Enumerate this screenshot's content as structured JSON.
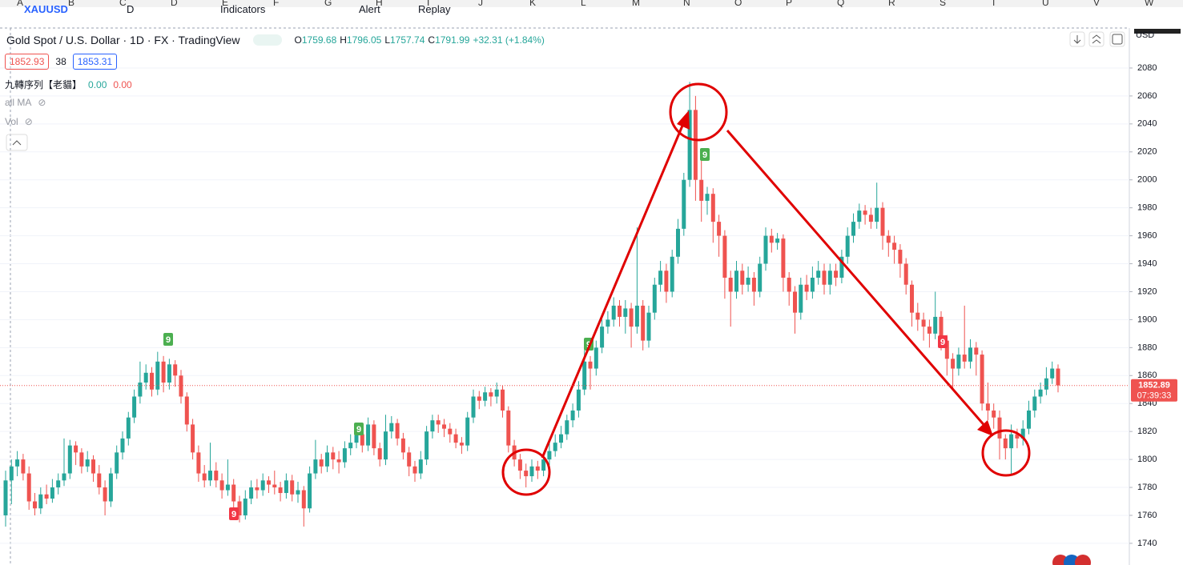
{
  "toolbar": {
    "symbol": "XAUUSD",
    "interval": "D",
    "items": [
      "Indicators",
      "Alert",
      "Replay"
    ]
  },
  "spreadsheet_columns": [
    "A",
    "B",
    "C",
    "D",
    "E",
    "F",
    "G",
    "H",
    "I",
    "J",
    "K",
    "L",
    "M",
    "N",
    "O",
    "P",
    "Q",
    "R",
    "S",
    "T",
    "U",
    "V",
    "W"
  ],
  "chart_data": {
    "type": "candlestick",
    "title": "Gold Spot / U.S. Dollar · 1D · FX · TradingView",
    "ohlc_legend": [
      {
        "key": "O",
        "value": "1759.68"
      },
      {
        "key": "H",
        "value": "1796.05"
      },
      {
        "key": "L",
        "value": "1757.74"
      },
      {
        "key": "C",
        "value": "1791.99"
      }
    ],
    "change": "+32.31 (+1.84%)",
    "bid": 1852.93,
    "spread": 38,
    "ask": 1853.31,
    "indicators": [
      {
        "name": "九轉序列【老貓】",
        "values": [
          "0.00",
          "0.00"
        ]
      },
      {
        "name": "all MA"
      },
      {
        "name": "Vol"
      }
    ],
    "currency": "USD",
    "last_price": 1852.89,
    "countdown": "07:39:33",
    "up_color": "#26a69a",
    "down_color": "#ef5350",
    "grid": true,
    "ylim": [
      1724.5,
      2108.6
    ],
    "yticks": [
      1740,
      1760,
      1780,
      1800,
      1820,
      1840,
      1860,
      1880,
      1900,
      1920,
      1940,
      1960,
      1980,
      2000,
      2020,
      2040,
      2060,
      2080
    ],
    "td_markers": [
      {
        "label": "9",
        "color": "#4caf50"
      },
      {
        "label": "9",
        "color": "#4caf50"
      },
      {
        "label": "9",
        "color": "#4caf50"
      },
      {
        "label": "9",
        "color": "#4caf50"
      },
      {
        "label": "9",
        "color": "#f23645"
      },
      {
        "label": "9",
        "color": "#f23645"
      }
    ],
    "ohlc": [
      [
        1760,
        1792,
        1752,
        1785
      ],
      [
        1785,
        1800,
        1768,
        1795
      ],
      [
        1795,
        1806,
        1788,
        1800
      ],
      [
        1800,
        1804,
        1785,
        1790
      ],
      [
        1790,
        1795,
        1764,
        1770
      ],
      [
        1770,
        1776,
        1760,
        1765
      ],
      [
        1765,
        1780,
        1761,
        1775
      ],
      [
        1775,
        1782,
        1768,
        1772
      ],
      [
        1772,
        1786,
        1769,
        1780
      ],
      [
        1780,
        1790,
        1775,
        1785
      ],
      [
        1785,
        1815,
        1781,
        1790
      ],
      [
        1790,
        1814,
        1786,
        1810
      ],
      [
        1810,
        1813,
        1796,
        1805
      ],
      [
        1805,
        1808,
        1790,
        1795
      ],
      [
        1795,
        1806,
        1791,
        1800
      ],
      [
        1800,
        1803,
        1784,
        1790
      ],
      [
        1790,
        1796,
        1775,
        1780
      ],
      [
        1780,
        1785,
        1760,
        1770
      ],
      [
        1770,
        1794,
        1766,
        1790
      ],
      [
        1790,
        1810,
        1786,
        1805
      ],
      [
        1805,
        1820,
        1800,
        1815
      ],
      [
        1815,
        1834,
        1810,
        1830
      ],
      [
        1830,
        1850,
        1826,
        1845
      ],
      [
        1845,
        1870,
        1840,
        1855
      ],
      [
        1855,
        1868,
        1850,
        1862
      ],
      [
        1862,
        1866,
        1845,
        1850
      ],
      [
        1850,
        1877,
        1846,
        1870
      ],
      [
        1870,
        1874,
        1848,
        1855
      ],
      [
        1855,
        1872,
        1850,
        1868
      ],
      [
        1868,
        1871,
        1852,
        1860
      ],
      [
        1860,
        1864,
        1840,
        1845
      ],
      [
        1845,
        1848,
        1820,
        1825
      ],
      [
        1825,
        1829,
        1800,
        1805
      ],
      [
        1805,
        1810,
        1784,
        1790
      ],
      [
        1790,
        1796,
        1780,
        1785
      ],
      [
        1785,
        1812,
        1781,
        1792
      ],
      [
        1792,
        1798,
        1780,
        1785
      ],
      [
        1785,
        1790,
        1772,
        1778
      ],
      [
        1778,
        1800,
        1774,
        1782
      ],
      [
        1782,
        1786,
        1765,
        1770
      ],
      [
        1770,
        1774,
        1755,
        1760
      ],
      [
        1760,
        1778,
        1757,
        1772
      ],
      [
        1772,
        1785,
        1768,
        1780
      ],
      [
        1780,
        1786,
        1772,
        1778
      ],
      [
        1778,
        1790,
        1774,
        1785
      ],
      [
        1785,
        1788,
        1776,
        1782
      ],
      [
        1782,
        1792,
        1775,
        1780
      ],
      [
        1780,
        1784,
        1770,
        1776
      ],
      [
        1776,
        1790,
        1772,
        1785
      ],
      [
        1785,
        1789,
        1770,
        1775
      ],
      [
        1775,
        1784,
        1769,
        1778
      ],
      [
        1778,
        1781,
        1752,
        1765
      ],
      [
        1765,
        1795,
        1762,
        1790
      ],
      [
        1790,
        1814,
        1786,
        1800
      ],
      [
        1800,
        1804,
        1790,
        1795
      ],
      [
        1795,
        1810,
        1791,
        1805
      ],
      [
        1805,
        1809,
        1793,
        1800
      ],
      [
        1800,
        1806,
        1790,
        1798
      ],
      [
        1798,
        1813,
        1794,
        1808
      ],
      [
        1808,
        1818,
        1803,
        1812
      ],
      [
        1812,
        1824,
        1808,
        1818
      ],
      [
        1818,
        1822,
        1805,
        1810
      ],
      [
        1810,
        1830,
        1806,
        1825
      ],
      [
        1825,
        1828,
        1803,
        1808
      ],
      [
        1808,
        1812,
        1795,
        1800
      ],
      [
        1800,
        1832,
        1796,
        1820
      ],
      [
        1820,
        1831,
        1815,
        1826
      ],
      [
        1826,
        1829,
        1810,
        1815
      ],
      [
        1815,
        1819,
        1800,
        1805
      ],
      [
        1805,
        1809,
        1788,
        1795
      ],
      [
        1795,
        1799,
        1784,
        1790
      ],
      [
        1790,
        1806,
        1786,
        1800
      ],
      [
        1800,
        1824,
        1796,
        1820
      ],
      [
        1820,
        1832,
        1815,
        1828
      ],
      [
        1828,
        1832,
        1819,
        1825
      ],
      [
        1825,
        1829,
        1816,
        1822
      ],
      [
        1822,
        1826,
        1812,
        1818
      ],
      [
        1818,
        1822,
        1808,
        1812
      ],
      [
        1812,
        1816,
        1804,
        1810
      ],
      [
        1810,
        1834,
        1806,
        1830
      ],
      [
        1830,
        1850,
        1826,
        1845
      ],
      [
        1845,
        1849,
        1836,
        1842
      ],
      [
        1842,
        1852,
        1838,
        1848
      ],
      [
        1848,
        1851,
        1838,
        1845
      ],
      [
        1845,
        1855,
        1840,
        1850
      ],
      [
        1850,
        1853,
        1830,
        1835
      ],
      [
        1835,
        1838,
        1805,
        1810
      ],
      [
        1810,
        1814,
        1795,
        1800
      ],
      [
        1800,
        1804,
        1786,
        1792
      ],
      [
        1792,
        1797,
        1780,
        1788
      ],
      [
        1788,
        1800,
        1784,
        1795
      ],
      [
        1795,
        1799,
        1786,
        1792
      ],
      [
        1792,
        1805,
        1788,
        1800
      ],
      [
        1800,
        1812,
        1796,
        1806
      ],
      [
        1806,
        1818,
        1802,
        1812
      ],
      [
        1812,
        1824,
        1808,
        1818
      ],
      [
        1818,
        1832,
        1814,
        1828
      ],
      [
        1828,
        1840,
        1823,
        1835
      ],
      [
        1835,
        1856,
        1830,
        1850
      ],
      [
        1850,
        1878,
        1846,
        1870
      ],
      [
        1870,
        1874,
        1850,
        1865
      ],
      [
        1865,
        1885,
        1860,
        1880
      ],
      [
        1880,
        1900,
        1876,
        1895
      ],
      [
        1895,
        1906,
        1890,
        1900
      ],
      [
        1900,
        1916,
        1895,
        1910
      ],
      [
        1910,
        1914,
        1895,
        1902
      ],
      [
        1902,
        1914,
        1890,
        1908
      ],
      [
        1908,
        1912,
        1880,
        1895
      ],
      [
        1895,
        1966,
        1890,
        1910
      ],
      [
        1910,
        1914,
        1878,
        1885
      ],
      [
        1885,
        1910,
        1880,
        1905
      ],
      [
        1905,
        1930,
        1900,
        1925
      ],
      [
        1925,
        1942,
        1920,
        1935
      ],
      [
        1935,
        1940,
        1912,
        1920
      ],
      [
        1920,
        1950,
        1916,
        1945
      ],
      [
        1945,
        1972,
        1940,
        1965
      ],
      [
        1965,
        2005,
        1960,
        2000
      ],
      [
        2000,
        2070,
        1995,
        2050
      ],
      [
        2050,
        2060,
        1985,
        2000
      ],
      [
        2000,
        2015,
        1970,
        1985
      ],
      [
        1985,
        1995,
        1975,
        1990
      ],
      [
        1990,
        1994,
        1955,
        1970
      ],
      [
        1970,
        1975,
        1945,
        1960
      ],
      [
        1960,
        1964,
        1915,
        1930
      ],
      [
        1930,
        1935,
        1895,
        1920
      ],
      [
        1920,
        1942,
        1915,
        1935
      ],
      [
        1935,
        1940,
        1918,
        1925
      ],
      [
        1925,
        1938,
        1920,
        1930
      ],
      [
        1930,
        1934,
        1910,
        1920
      ],
      [
        1920,
        1945,
        1916,
        1940
      ],
      [
        1940,
        1966,
        1935,
        1960
      ],
      [
        1960,
        1965,
        1948,
        1955
      ],
      [
        1955,
        1962,
        1950,
        1958
      ],
      [
        1958,
        1961,
        1920,
        1930
      ],
      [
        1930,
        1934,
        1910,
        1920
      ],
      [
        1920,
        1924,
        1890,
        1905
      ],
      [
        1905,
        1930,
        1900,
        1925
      ],
      [
        1925,
        1932,
        1914,
        1920
      ],
      [
        1920,
        1938,
        1915,
        1930
      ],
      [
        1930,
        1942,
        1925,
        1935
      ],
      [
        1935,
        1940,
        1918,
        1925
      ],
      [
        1925,
        1940,
        1918,
        1935
      ],
      [
        1935,
        1940,
        1924,
        1930
      ],
      [
        1930,
        1950,
        1926,
        1945
      ],
      [
        1945,
        1966,
        1940,
        1960
      ],
      [
        1960,
        1976,
        1955,
        1970
      ],
      [
        1970,
        1983,
        1965,
        1978
      ],
      [
        1978,
        1982,
        1968,
        1975
      ],
      [
        1975,
        1980,
        1965,
        1970
      ],
      [
        1970,
        1998,
        1965,
        1980
      ],
      [
        1980,
        1984,
        1950,
        1960
      ],
      [
        1960,
        1964,
        1945,
        1955
      ],
      [
        1955,
        1960,
        1940,
        1950
      ],
      [
        1950,
        1954,
        1930,
        1940
      ],
      [
        1940,
        1944,
        1918,
        1925
      ],
      [
        1925,
        1928,
        1895,
        1905
      ],
      [
        1905,
        1912,
        1892,
        1900
      ],
      [
        1900,
        1905,
        1885,
        1895
      ],
      [
        1895,
        1900,
        1880,
        1890
      ],
      [
        1890,
        1920,
        1886,
        1902
      ],
      [
        1902,
        1906,
        1878,
        1885
      ],
      [
        1885,
        1889,
        1860,
        1872
      ],
      [
        1872,
        1876,
        1850,
        1865
      ],
      [
        1865,
        1880,
        1860,
        1875
      ],
      [
        1875,
        1910,
        1865,
        1870
      ],
      [
        1870,
        1886,
        1865,
        1880
      ],
      [
        1880,
        1884,
        1860,
        1875
      ],
      [
        1875,
        1878,
        1835,
        1840
      ],
      [
        1840,
        1855,
        1828,
        1835
      ],
      [
        1835,
        1840,
        1822,
        1830
      ],
      [
        1830,
        1835,
        1800,
        1815
      ],
      [
        1815,
        1818,
        1800,
        1808
      ],
      [
        1808,
        1825,
        1789,
        1818
      ],
      [
        1818,
        1822,
        1808,
        1815
      ],
      [
        1815,
        1828,
        1810,
        1822
      ],
      [
        1822,
        1842,
        1818,
        1835
      ],
      [
        1835,
        1850,
        1830,
        1845
      ],
      [
        1845,
        1855,
        1840,
        1850
      ],
      [
        1850,
        1866,
        1846,
        1858
      ],
      [
        1858,
        1870,
        1854,
        1865
      ],
      [
        1865,
        1868,
        1848,
        1853
      ]
    ]
  }
}
